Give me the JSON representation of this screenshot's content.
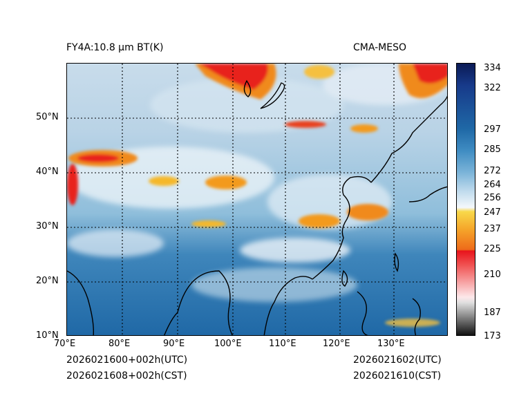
{
  "header": {
    "title_left": "FY4A:10.8 µm BT(K)",
    "title_right": "CMA-MESO"
  },
  "map": {
    "lon_ticks": [
      "70°E",
      "80°E",
      "90°E",
      "100°E",
      "110°E",
      "120°E",
      "130°E"
    ],
    "lat_ticks": [
      "50°N",
      "40°N",
      "30°N",
      "20°N",
      "10°N"
    ],
    "lon_range": [
      70,
      139
    ],
    "lat_range": [
      10,
      60
    ],
    "colors": {
      "ocean": "#2f78b0",
      "land_clear": "#6aaad0",
      "cloud_cold": "#e8f0f6",
      "convective": "#f39a1c",
      "deep_convective": "#e8221c"
    }
  },
  "colorbar": {
    "labels": [
      "334",
      "322",
      "297",
      "285",
      "272",
      "264",
      "256",
      "247",
      "237",
      "225",
      "210",
      "187",
      "173"
    ],
    "values": [
      334,
      322,
      297,
      285,
      272,
      264,
      256,
      247,
      237,
      225,
      210,
      187,
      173
    ],
    "range": [
      173,
      334
    ]
  },
  "footer": {
    "init_utc": "2026021600+002h(UTC)",
    "init_cst": "2026021608+002h(CST)",
    "valid_utc": "2026021602(UTC)",
    "valid_cst": "2026021610(CST)"
  }
}
